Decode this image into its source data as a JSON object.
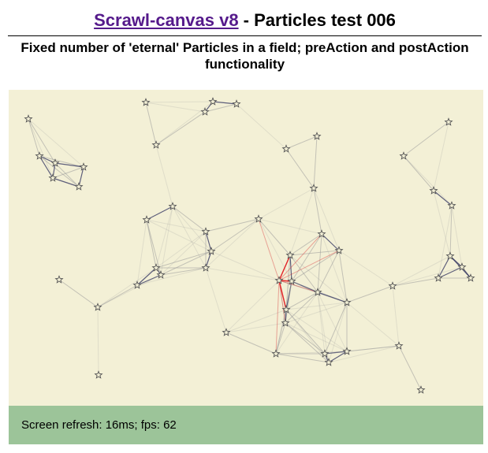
{
  "header": {
    "link_text": "Scrawl-canvas v8",
    "title_rest": " - Particles test 006"
  },
  "subtitle": "Fixed number of 'eternal' Particles in a field; preAction and postAction functionality",
  "canvas": {
    "background": "#f3f0d6",
    "particle_icon": "star-icon",
    "near_line_color": "#2b2d5c",
    "far_line_color": "#9a9a9a",
    "highlight_line_color": "#ff1a1a"
  },
  "footer": {
    "refresh_label": "Screen refresh: 16ms; fps: 62",
    "background": "#9cc499"
  }
}
